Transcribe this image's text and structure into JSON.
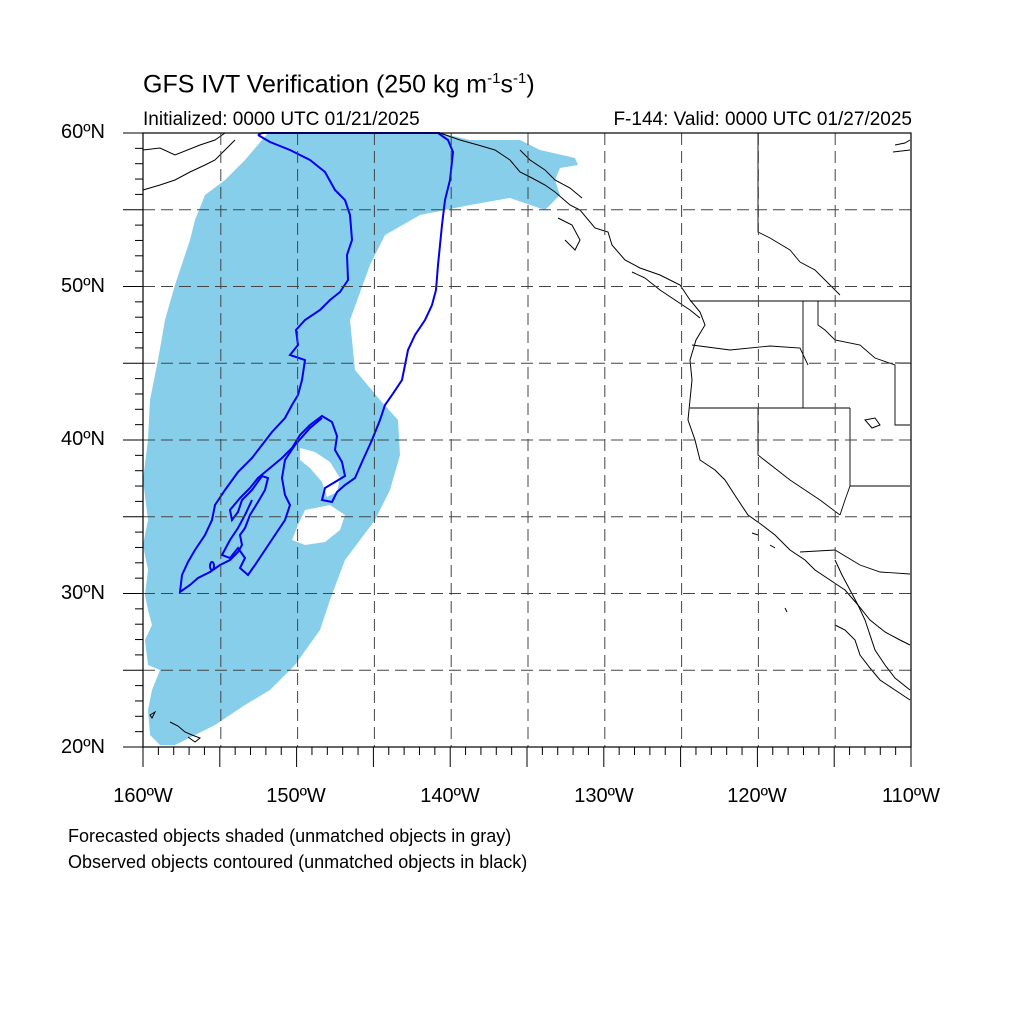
{
  "title": {
    "main": "GFS IVT Verification (250 kg m",
    "sup1": "-1",
    "mid": "s",
    "sup2": "-1",
    "end": ")"
  },
  "subtitle_left": "Initialized: 0000 UTC 01/21/2025",
  "subtitle_right": "F-144: Valid: 0000 UTC 01/27/2025",
  "lat_labels": [
    "60ºN",
    "50ºN",
    "40ºN",
    "30ºN",
    "20ºN"
  ],
  "lon_labels": [
    "160ºW",
    "150ºW",
    "140ºW",
    "130ºW",
    "120ºW",
    "110ºW"
  ],
  "notes": [
    "Forecasted objects shaded (unmatched objects in gray)",
    "Observed objects contoured (unmatched objects in black)"
  ],
  "map": {
    "extent": {
      "lon_min": -160,
      "lon_max": -110,
      "lat_min": 20,
      "lat_max": 60
    },
    "grid_lon_step": 5,
    "grid_lat_step": 5
  },
  "colors": {
    "forecast_fill": "#87ceeb",
    "observed_contour": "#0000ee",
    "coast": "#000000",
    "grid": "#555555"
  }
}
